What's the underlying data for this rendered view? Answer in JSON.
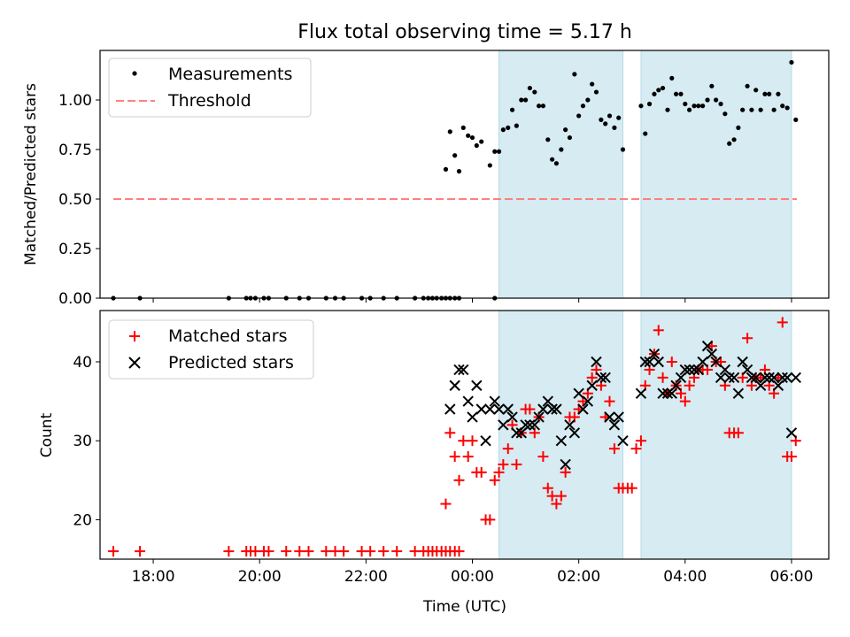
{
  "chart_data": {
    "type": "scatter",
    "title": "Flux total observing time = 5.17 h",
    "xlabel": "Time (UTC)",
    "x_unit": "hours relative to 00:00 UTC",
    "xlim": [
      -7.0,
      6.7
    ],
    "xticks": [
      -6,
      -4,
      -2,
      0,
      2,
      4,
      6
    ],
    "xtick_labels": [
      "18:00",
      "20:00",
      "22:00",
      "00:00",
      "02:00",
      "04:00",
      "06:00"
    ],
    "shaded_intervals": [
      [
        0.5,
        2.83
      ],
      [
        3.17,
        6.0
      ]
    ],
    "panels": [
      {
        "id": "ratio",
        "ylabel": "Matched/Predicted stars",
        "ylim": [
          0,
          1.25
        ],
        "yticks": [
          0,
          0.25,
          0.5,
          0.75,
          1.0
        ],
        "ytick_labels": [
          "0.00",
          "0.25",
          "0.50",
          "0.75",
          "1.00"
        ],
        "legend": {
          "position": "upper-left",
          "entries": [
            "Measurements",
            "Threshold"
          ]
        },
        "threshold": {
          "name": "Threshold",
          "value": 0.5,
          "x_range": [
            -6.75,
            6.1
          ],
          "color": "#ff7f7f"
        },
        "series": [
          {
            "name": "Measurements",
            "marker": "dot",
            "color": "#000000",
            "x": [
              -6.75,
              -6.25,
              -4.58,
              -4.25,
              -4.17,
              -4.08,
              -3.92,
              -3.83,
              -3.5,
              -3.25,
              -3.08,
              -2.75,
              -2.58,
              -2.42,
              -2.08,
              -1.92,
              -1.67,
              -1.42,
              -1.08,
              -0.92,
              -0.83,
              -0.75,
              -0.67,
              -0.58,
              -0.5,
              -0.42,
              -0.33,
              -0.25,
              -0.5,
              -0.42,
              -0.33,
              -0.25,
              -0.17,
              -0.08,
              0.0,
              0.08,
              0.17,
              0.33,
              0.42,
              0.5,
              0.58,
              0.67,
              0.75,
              0.83,
              0.92,
              1.0,
              1.08,
              1.17,
              1.25,
              1.33,
              1.42,
              1.5,
              1.58,
              1.67,
              1.75,
              1.83,
              1.92,
              2.0,
              2.08,
              2.17,
              2.25,
              2.33,
              2.42,
              2.5,
              2.58,
              2.67,
              2.75,
              2.83,
              3.17,
              3.25,
              3.33,
              3.42,
              3.5,
              3.58,
              3.67,
              3.75,
              3.83,
              3.92,
              4.0,
              4.08,
              4.17,
              4.25,
              4.33,
              4.42,
              4.5,
              4.58,
              4.67,
              4.75,
              4.83,
              4.92,
              5.0,
              5.08,
              5.17,
              5.25,
              5.33,
              5.42,
              5.5,
              5.58,
              5.67,
              5.75,
              5.83,
              5.92,
              6.0,
              6.08,
              0.42
            ],
            "y": [
              0,
              0,
              0,
              0,
              0,
              0,
              0,
              0,
              0,
              0,
              0,
              0,
              0,
              0,
              0,
              0,
              0,
              0,
              0,
              0,
              0,
              0,
              0,
              0,
              0,
              0,
              0,
              0,
              0.65,
              0.84,
              0.72,
              0.64,
              0.86,
              0.82,
              0.81,
              0.77,
              0.79,
              0.67,
              0.74,
              0.74,
              0.85,
              0.86,
              0.95,
              0.87,
              1.0,
              1.0,
              1.06,
              1.04,
              0.97,
              0.97,
              0.8,
              0.7,
              0.68,
              0.75,
              0.85,
              0.81,
              1.13,
              0.92,
              0.97,
              1.0,
              1.08,
              1.04,
              0.9,
              0.88,
              0.92,
              0.86,
              0.91,
              0.75,
              0.97,
              0.83,
              0.98,
              1.03,
              1.05,
              1.06,
              0.95,
              1.11,
              1.03,
              1.03,
              0.98,
              0.95,
              0.97,
              0.97,
              0.97,
              1.0,
              1.07,
              1.0,
              0.98,
              0.93,
              0.78,
              0.8,
              0.86,
              0.95,
              1.07,
              0.95,
              1.05,
              0.95,
              1.03,
              1.03,
              0.95,
              1.03,
              0.97,
              0.96,
              1.19,
              0.9,
              0
            ]
          }
        ]
      },
      {
        "id": "counts",
        "ylabel": "Count",
        "ylim": [
          15,
          46.5
        ],
        "yticks": [
          20,
          30,
          40
        ],
        "ytick_labels": [
          "20",
          "30",
          "40"
        ],
        "legend": {
          "position": "upper-left",
          "entries": [
            "Matched stars",
            "Predicted stars"
          ]
        },
        "series": [
          {
            "name": "Matched stars",
            "marker": "plus",
            "color": "#ff0000",
            "x": [
              -6.75,
              -6.25,
              -4.58,
              -4.25,
              -4.17,
              -4.08,
              -3.92,
              -3.83,
              -3.5,
              -3.25,
              -3.08,
              -2.75,
              -2.58,
              -2.42,
              -2.08,
              -1.92,
              -1.67,
              -1.42,
              -1.08,
              -0.92,
              -0.83,
              -0.75,
              -0.67,
              -0.58,
              -0.5,
              -0.42,
              -0.33,
              -0.25,
              -0.5,
              -0.42,
              -0.33,
              -0.25,
              -0.17,
              -0.08,
              0.0,
              0.08,
              0.17,
              0.25,
              0.33,
              0.42,
              0.5,
              0.58,
              0.67,
              0.75,
              0.83,
              0.92,
              1.0,
              1.08,
              1.17,
              1.25,
              1.33,
              1.42,
              1.5,
              1.58,
              1.67,
              1.75,
              1.83,
              1.92,
              2.0,
              2.08,
              2.17,
              2.25,
              2.33,
              2.42,
              2.5,
              2.58,
              2.67,
              2.75,
              2.83,
              2.92,
              3.0,
              3.08,
              3.17,
              3.25,
              3.33,
              3.42,
              3.5,
              3.58,
              3.67,
              3.75,
              3.83,
              3.92,
              4.0,
              4.08,
              4.17,
              4.25,
              4.33,
              4.42,
              4.5,
              4.58,
              4.67,
              4.75,
              4.83,
              4.92,
              5.0,
              5.08,
              5.17,
              5.25,
              5.33,
              5.42,
              5.5,
              5.58,
              5.67,
              5.75,
              5.83,
              5.92,
              6.0,
              6.08
            ],
            "y": [
              16,
              16,
              16,
              16,
              16,
              16,
              16,
              16,
              16,
              16,
              16,
              16,
              16,
              16,
              16,
              16,
              16,
              16,
              16,
              16,
              16,
              16,
              16,
              16,
              16,
              16,
              16,
              16,
              22,
              31,
              28,
              25,
              30,
              28,
              30,
              26,
              26,
              20,
              20,
              25,
              26,
              27,
              29,
              32,
              27,
              31,
              34,
              34,
              31,
              33,
              28,
              24,
              23,
              22,
              23,
              26,
              33,
              33,
              34,
              35,
              36,
              38,
              39,
              37,
              33,
              35,
              29,
              24,
              24,
              24,
              24,
              29,
              30,
              37,
              39,
              41,
              44,
              38,
              36,
              40,
              37,
              36,
              35,
              37,
              38,
              39,
              39,
              39,
              42,
              40,
              40,
              37,
              31,
              31,
              31,
              38,
              43,
              37,
              38,
              38,
              39,
              37,
              36,
              38,
              45,
              28,
              28,
              30
            ],
            "x_extra_note": ""
          },
          {
            "name": "Predicted stars",
            "marker": "x",
            "color": "#000000",
            "x": [
              -0.42,
              -0.33,
              -0.25,
              -0.17,
              -0.08,
              0.0,
              0.08,
              0.17,
              0.25,
              0.33,
              0.42,
              0.5,
              0.58,
              0.67,
              0.75,
              0.83,
              0.92,
              1.0,
              1.08,
              1.17,
              1.25,
              1.33,
              1.42,
              1.5,
              1.58,
              1.67,
              1.75,
              1.83,
              1.92,
              2.0,
              2.08,
              2.17,
              2.25,
              2.33,
              2.42,
              2.5,
              2.58,
              2.67,
              2.75,
              2.83,
              3.17,
              3.25,
              3.33,
              3.42,
              3.5,
              3.58,
              3.67,
              3.75,
              3.83,
              3.92,
              4.0,
              4.08,
              4.17,
              4.25,
              4.33,
              4.42,
              4.5,
              4.58,
              4.67,
              4.75,
              4.83,
              4.92,
              5.0,
              5.08,
              5.17,
              5.25,
              5.33,
              5.42,
              5.5,
              5.58,
              5.67,
              5.75,
              5.83,
              5.92,
              6.0,
              6.08
            ],
            "y": [
              34,
              37,
              39,
              39,
              35,
              33,
              37,
              34,
              30,
              34,
              35,
              34,
              32,
              34,
              33,
              31,
              31,
              32,
              32,
              32,
              33,
              34,
              35,
              34,
              34,
              30,
              27,
              32,
              31,
              36,
              34,
              35,
              37,
              40,
              38,
              38,
              33,
              32,
              33,
              30,
              36,
              40,
              40,
              41,
              40,
              36,
              36,
              36,
              37,
              38,
              39,
              39,
              39,
              39,
              40,
              42,
              41,
              40,
              38,
              39,
              38,
              38,
              36,
              40,
              39,
              38,
              38,
              37,
              38,
              38,
              38,
              37,
              38,
              38,
              31,
              38
            ]
          }
        ]
      }
    ]
  }
}
